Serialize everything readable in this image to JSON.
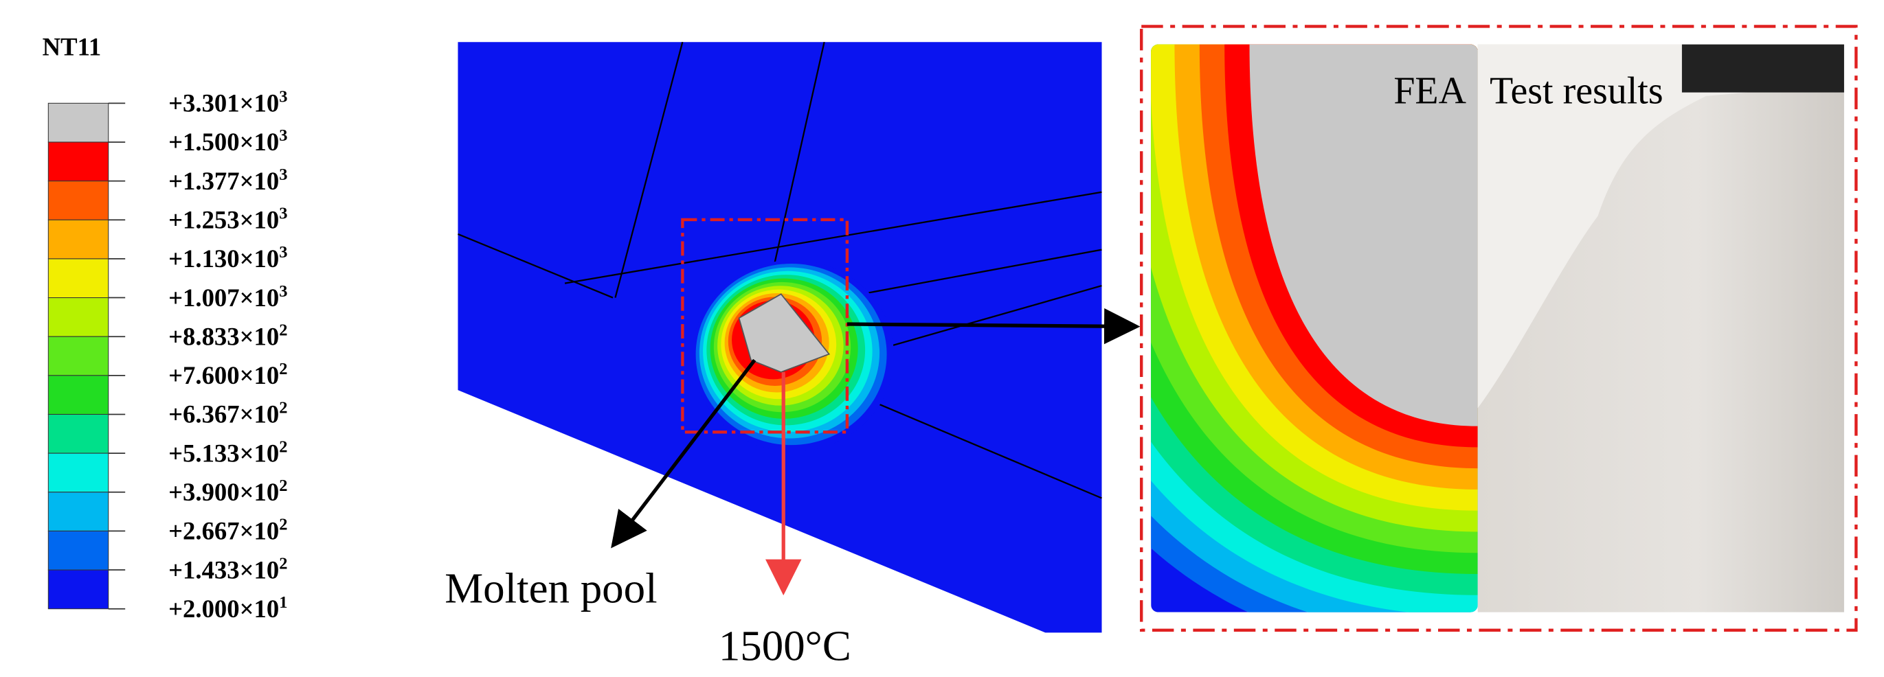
{
  "legend": {
    "title": "NT11",
    "labels": [
      {
        "mantissa": "+3.301×10",
        "exponent": "3"
      },
      {
        "mantissa": "+1.500×10",
        "exponent": "3"
      },
      {
        "mantissa": "+1.377×10",
        "exponent": "3"
      },
      {
        "mantissa": "+1.253×10",
        "exponent": "3"
      },
      {
        "mantissa": "+1.130×10",
        "exponent": "3"
      },
      {
        "mantissa": "+1.007×10",
        "exponent": "3"
      },
      {
        "mantissa": "+8.833×10",
        "exponent": "2"
      },
      {
        "mantissa": "+7.600×10",
        "exponent": "2"
      },
      {
        "mantissa": "+6.367×10",
        "exponent": "2"
      },
      {
        "mantissa": "+5.133×10",
        "exponent": "2"
      },
      {
        "mantissa": "+3.900×10",
        "exponent": "2"
      },
      {
        "mantissa": "+2.667×10",
        "exponent": "2"
      },
      {
        "mantissa": "+1.433×10",
        "exponent": "2"
      },
      {
        "mantissa": "+2.000×10",
        "exponent": "1"
      }
    ]
  },
  "annotations": {
    "molten_pool": "Molten pool",
    "temperature": "1500°C",
    "fea": "FEA",
    "test": "Test results"
  }
}
